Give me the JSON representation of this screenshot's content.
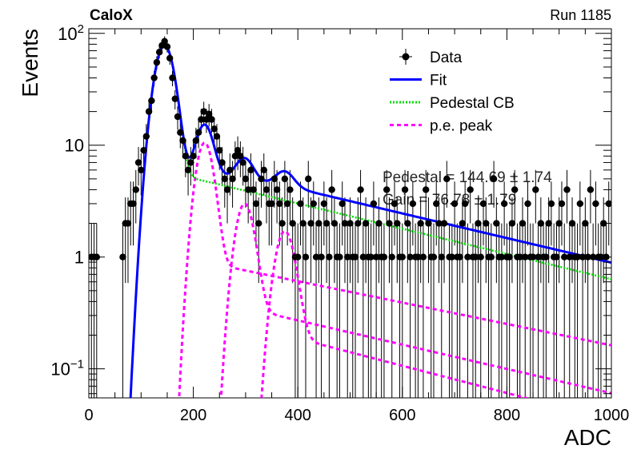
{
  "chart_data": {
    "type": "scatter",
    "experiment_label": "CaloX",
    "run_label": "Run 1185",
    "xlabel": "ADC",
    "ylabel": "Events",
    "xlim": [
      0,
      1000
    ],
    "ylim": [
      0.055,
      110
    ],
    "log_y": true,
    "x_ticks": [
      0,
      200,
      400,
      600,
      800,
      1000
    ],
    "y_tick_labels": [
      {
        "value": 0.1,
        "base": "10",
        "exp": "−1"
      },
      {
        "value": 1,
        "base": "1",
        "exp": ""
      },
      {
        "value": 10,
        "base": "10",
        "exp": ""
      },
      {
        "value": 100,
        "base": "10",
        "exp": "2"
      }
    ],
    "legend": [
      {
        "name": "Data",
        "style": "marker",
        "color": "#000000"
      },
      {
        "name": "Fit",
        "style": "solid",
        "color": "#0000ff"
      },
      {
        "name": "Pedestal CB",
        "style": "dotted",
        "color": "#00dd00"
      },
      {
        "name": "p.e. peak",
        "style": "dashed",
        "color": "#ff00ff"
      }
    ],
    "fit_text": [
      "Pedestal = 144.69 ± 1.74",
      "Gain = 76.78 ± 1.79"
    ],
    "data": {
      "x": [
        5,
        10,
        15,
        20,
        25,
        30,
        35,
        40,
        45,
        50,
        55,
        60,
        65,
        70,
        75,
        80,
        85,
        90,
        95,
        100,
        105,
        110,
        115,
        120,
        125,
        130,
        135,
        140,
        145,
        150,
        155,
        160,
        165,
        170,
        175,
        180,
        185,
        190,
        195,
        200,
        205,
        210,
        215,
        220,
        225,
        230,
        235,
        240,
        245,
        250,
        255,
        260,
        265,
        270,
        275,
        280,
        285,
        290,
        295,
        300,
        305,
        310,
        315,
        320,
        325,
        330,
        335,
        340,
        345,
        350,
        355,
        360,
        365,
        370,
        375,
        380,
        385,
        390,
        395,
        400,
        405,
        410,
        415,
        420,
        425,
        430,
        435,
        440,
        445,
        450,
        455,
        460,
        465,
        470,
        475,
        480,
        485,
        490,
        495,
        500,
        505,
        510,
        515,
        520,
        525,
        530,
        535,
        540,
        545,
        550,
        555,
        560,
        565,
        570,
        575,
        580,
        585,
        590,
        595,
        600,
        605,
        610,
        615,
        620,
        625,
        630,
        635,
        640,
        645,
        650,
        655,
        660,
        665,
        670,
        675,
        680,
        685,
        690,
        695,
        700,
        705,
        710,
        715,
        720,
        725,
        730,
        735,
        740,
        745,
        750,
        755,
        760,
        765,
        770,
        775,
        780,
        785,
        790,
        795,
        800,
        805,
        810,
        815,
        820,
        825,
        830,
        835,
        840,
        845,
        850,
        855,
        860,
        865,
        870,
        875,
        880,
        885,
        890,
        895,
        900,
        905,
        910,
        915,
        920,
        925,
        930,
        935,
        940,
        945,
        950,
        955,
        960,
        965,
        970,
        975,
        980,
        985,
        990,
        995
      ],
      "y": [
        1,
        1,
        1,
        0,
        0,
        0,
        0,
        0,
        0,
        0,
        0,
        0,
        1,
        2,
        2,
        3,
        3,
        4,
        7,
        6,
        9,
        12,
        20,
        25,
        40,
        55,
        68,
        78,
        85,
        76,
        60,
        40,
        26,
        18,
        13,
        11,
        8,
        6,
        7,
        8,
        11,
        13,
        17,
        20,
        17,
        19,
        17,
        14,
        12,
        9,
        7,
        5,
        4,
        6,
        5,
        8,
        9,
        8,
        7,
        5,
        4,
        6,
        4,
        3,
        2,
        5,
        6,
        4,
        3,
        3,
        5,
        4,
        3,
        2,
        5,
        3,
        4,
        2,
        1,
        1,
        3,
        2,
        1,
        5,
        2,
        3,
        1,
        2,
        1,
        3,
        2,
        1,
        4,
        2,
        1,
        1,
        3,
        2,
        1,
        2,
        1,
        1,
        2,
        4,
        1,
        2,
        1,
        1,
        3,
        1,
        2,
        1,
        1,
        4,
        2,
        1,
        3,
        2,
        1,
        1,
        4,
        2,
        1,
        3,
        1,
        1,
        2,
        1,
        4,
        2,
        1,
        1,
        3,
        2,
        1,
        2,
        5,
        1,
        1,
        3,
        1,
        1,
        2,
        3,
        1,
        4,
        1,
        1,
        2,
        1,
        3,
        2,
        1,
        1,
        5,
        2,
        1,
        1,
        3,
        1,
        1,
        2,
        4,
        1,
        1,
        2,
        1,
        3,
        1,
        1,
        4,
        1,
        2,
        1,
        1,
        2,
        3,
        1,
        1,
        2,
        3,
        1,
        4,
        1,
        2,
        1,
        1,
        3,
        1,
        2,
        1,
        4,
        1,
        3,
        1,
        1,
        2,
        1,
        3
      ]
    },
    "fit_curves": {
      "pedestal_mean": 144.69,
      "pedestal_amplitude": 78,
      "pedestal_sigma": 17,
      "pedestal_tail_start": 190,
      "pedestal_tail_value": 5.2,
      "pedestal_tail_slope": 0.0026,
      "pe_peaks": [
        {
          "mean": 221.5,
          "amplitude": 10.5,
          "sigma": 15,
          "tail": 0.9,
          "tail_slope": 0.0022
        },
        {
          "mean": 298.2,
          "amplitude": 3.0,
          "sigma": 16,
          "tail": 0.35,
          "tail_slope": 0.0025
        },
        {
          "mean": 375.0,
          "amplitude": 1.7,
          "sigma": 17,
          "tail": 0.2,
          "tail_slope": 0.0028
        }
      ]
    }
  }
}
